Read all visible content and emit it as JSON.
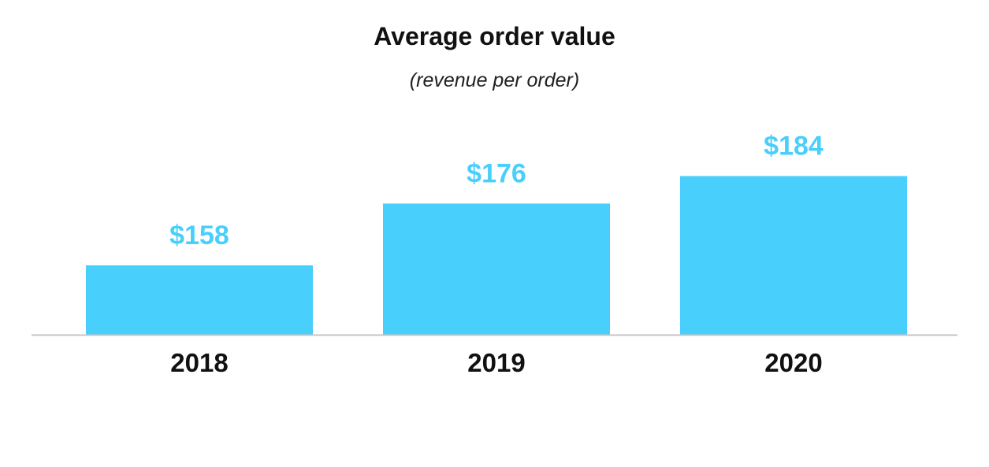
{
  "chart_data": {
    "type": "bar",
    "title": "Average order value",
    "subtitle": "(revenue per order)",
    "categories": [
      "2018",
      "2019",
      "2020"
    ],
    "values": [
      158,
      176,
      184
    ],
    "value_labels": [
      "$158",
      "$176",
      "$184"
    ],
    "xlabel": "",
    "ylabel": "",
    "ylim": [
      137.8,
      194
    ],
    "grid": false,
    "colors": {
      "bar": "#48CFFC",
      "value_label": "#48CFFC",
      "axis": "#C4C4C4"
    }
  }
}
